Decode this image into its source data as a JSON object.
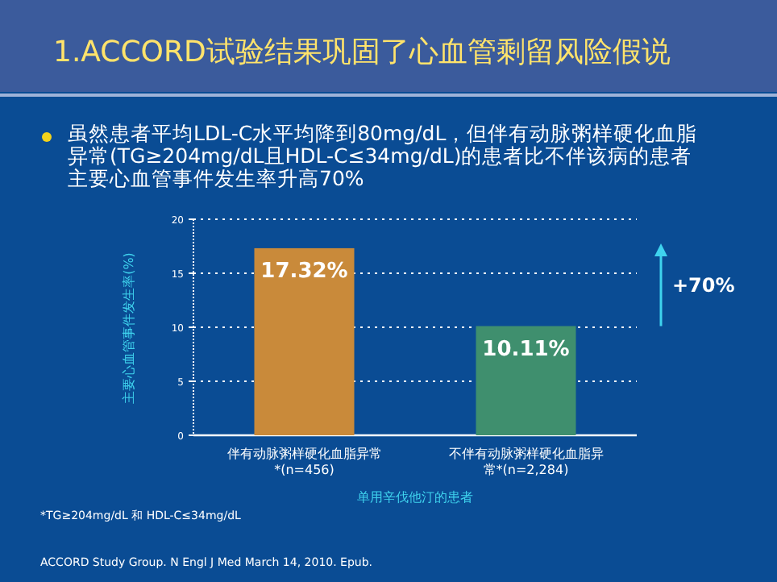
{
  "chart_data": {
    "type": "bar",
    "title": "1.ACCORD试验结果巩固了心血管剩留风险假说",
    "subtitle": "虽然患者平均LDL-C水平均降到80mg/dL，但伴有动脉粥样硬化血脂异常(TG≥204mg/dL且HDL-C≤34mg/dL)的患者比不伴该病的患者主要心血管事件发生率升高70%",
    "xlabel": "单用辛伐他汀的患者",
    "ylabel": "主要心血管事件发生率(%)",
    "categories": [
      "伴有动脉粥样硬化血脂异常*(n=456)",
      "不伴有动脉粥样硬化血脂异常*(n=2,284)"
    ],
    "values": [
      17.32,
      10.11
    ],
    "colors": [
      "#c98a3a",
      "#3f8f6e"
    ],
    "value_labels": [
      "17.32%",
      "10.11%"
    ],
    "ylim": [
      0,
      20
    ],
    "yticks": [
      0,
      5,
      10,
      15,
      20
    ],
    "grid": "y",
    "annotations": [
      "+70%",
      "*TG≥204mg/dL 和 HDL-C≤34mg/dL",
      "ACCORD Study Group. N Engl J Med March 14, 2010. Epub."
    ]
  }
}
